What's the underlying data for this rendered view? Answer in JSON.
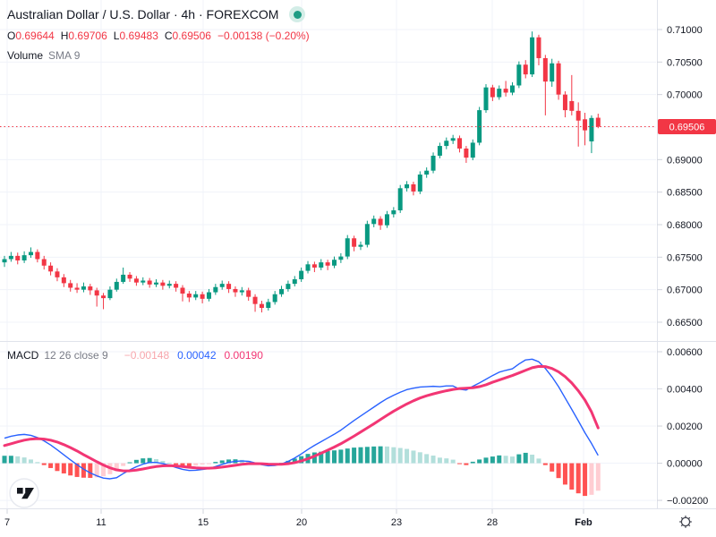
{
  "header": {
    "title": "Australian Dollar / U.S. Dollar · 4h · FOREXCOM",
    "market_status": "open",
    "ohlc": {
      "o_label": "O",
      "o_value": "0.69644",
      "h_label": "H",
      "h_value": "0.69706",
      "l_label": "L",
      "l_value": "0.69483",
      "c_label": "C",
      "c_value": "0.69506",
      "change": "−0.00138 (−0.20%)"
    }
  },
  "legend": {
    "volume": {
      "name": "Volume",
      "params": "SMA 9"
    },
    "macd": {
      "name": "MACD",
      "params": "12 26 close 9",
      "hist_value": "−0.00148",
      "macd_value": "0.00042",
      "signal_value": "0.00190"
    }
  },
  "price_axis": {
    "labels": [
      {
        "t": "0.71000",
        "v": 0.71
      },
      {
        "t": "0.70500",
        "v": 0.705
      },
      {
        "t": "0.70000",
        "v": 0.7
      },
      {
        "t": "0.69000",
        "v": 0.69
      },
      {
        "t": "0.68500",
        "v": 0.685
      },
      {
        "t": "0.68000",
        "v": 0.68
      },
      {
        "t": "0.67500",
        "v": 0.675
      },
      {
        "t": "0.67000",
        "v": 0.67
      },
      {
        "t": "0.66500",
        "v": 0.665
      }
    ],
    "last_price_label": {
      "t": "0.69506",
      "v": 0.69506
    }
  },
  "macd_axis": {
    "labels": [
      {
        "t": "0.00600",
        "v": 0.006
      },
      {
        "t": "0.00400",
        "v": 0.004
      },
      {
        "t": "0.00200",
        "v": 0.002
      },
      {
        "t": "0.00000",
        "v": 0
      },
      {
        "t": "−0.00200",
        "v": -0.002
      }
    ]
  },
  "time_axis": {
    "labels": [
      "7",
      "11",
      "15",
      "20",
      "23",
      "28",
      "Feb"
    ]
  },
  "colors": {
    "up": "#089981",
    "down": "#F23645",
    "accent_red": "#F23645",
    "macd_line": "#2962FF",
    "signal_line": "#F23674",
    "hist_up": "#26A69A",
    "hist_up_weak": "#B2DFDB",
    "hist_down": "#FF5252",
    "hist_down_weak": "#FFCDD2",
    "grid": "#F0F3FA",
    "border": "#E0E3EB",
    "axis_text": "#131722",
    "muted_text": "#787B86"
  },
  "chart_data": {
    "type": "candlestick",
    "title": "Australian Dollar / U.S. Dollar",
    "interval": "4h",
    "exchange": "FOREXCOM",
    "last_price": 0.69506,
    "price_ylim": [
      0.66211,
      0.71454
    ],
    "grid_price_values": [
      0.665,
      0.67,
      0.675,
      0.68,
      0.685,
      0.69,
      0.695,
      0.7,
      0.705,
      0.71
    ],
    "candles": [
      [
        0.6742,
        0.6752,
        0.6735,
        0.6747
      ],
      [
        0.6747,
        0.6758,
        0.6743,
        0.6752
      ],
      [
        0.6752,
        0.6757,
        0.6739,
        0.6745
      ],
      [
        0.6745,
        0.6759,
        0.6741,
        0.6753
      ],
      [
        0.6753,
        0.6765,
        0.6749,
        0.6758
      ],
      [
        0.6758,
        0.6762,
        0.6742,
        0.6747
      ],
      [
        0.6747,
        0.6752,
        0.6731,
        0.6737
      ],
      [
        0.6737,
        0.6742,
        0.6722,
        0.6728
      ],
      [
        0.6728,
        0.6733,
        0.6713,
        0.6719
      ],
      [
        0.6719,
        0.6724,
        0.6704,
        0.671
      ],
      [
        0.671,
        0.6715,
        0.6697,
        0.6703
      ],
      [
        0.6703,
        0.671,
        0.6695,
        0.67
      ],
      [
        0.67,
        0.6711,
        0.6696,
        0.6705
      ],
      [
        0.6705,
        0.6709,
        0.6692,
        0.6699
      ],
      [
        0.6699,
        0.6703,
        0.6674,
        0.6691
      ],
      [
        0.6691,
        0.6695,
        0.667,
        0.6687
      ],
      [
        0.6687,
        0.6705,
        0.6684,
        0.67
      ],
      [
        0.67,
        0.6717,
        0.6697,
        0.6712
      ],
      [
        0.6712,
        0.6734,
        0.6709,
        0.6723
      ],
      [
        0.6723,
        0.6727,
        0.6712,
        0.6717
      ],
      [
        0.6717,
        0.6721,
        0.6706,
        0.6711
      ],
      [
        0.6711,
        0.6719,
        0.6707,
        0.6714
      ],
      [
        0.6714,
        0.6718,
        0.6703,
        0.6708
      ],
      [
        0.6708,
        0.6716,
        0.6704,
        0.6711
      ],
      [
        0.6711,
        0.6715,
        0.67,
        0.6706
      ],
      [
        0.6706,
        0.6714,
        0.6702,
        0.6709
      ],
      [
        0.6709,
        0.6713,
        0.6697,
        0.6703
      ],
      [
        0.6703,
        0.6707,
        0.6682,
        0.6694
      ],
      [
        0.6694,
        0.6698,
        0.6681,
        0.6688
      ],
      [
        0.6688,
        0.6698,
        0.6684,
        0.6693
      ],
      [
        0.6693,
        0.6697,
        0.6679,
        0.6686
      ],
      [
        0.6686,
        0.6701,
        0.6682,
        0.6696
      ],
      [
        0.6696,
        0.6709,
        0.6692,
        0.6704
      ],
      [
        0.6704,
        0.6714,
        0.67,
        0.6709
      ],
      [
        0.6709,
        0.6713,
        0.6695,
        0.6701
      ],
      [
        0.6701,
        0.6705,
        0.6689,
        0.6696
      ],
      [
        0.6696,
        0.6704,
        0.6691,
        0.6699
      ],
      [
        0.6699,
        0.6703,
        0.6683,
        0.6689
      ],
      [
        0.6689,
        0.6693,
        0.6666,
        0.6678
      ],
      [
        0.6678,
        0.6683,
        0.6665,
        0.6672
      ],
      [
        0.6672,
        0.6686,
        0.6668,
        0.6681
      ],
      [
        0.6681,
        0.6698,
        0.6677,
        0.6693
      ],
      [
        0.6693,
        0.6706,
        0.6689,
        0.6701
      ],
      [
        0.6701,
        0.6714,
        0.6697,
        0.6709
      ],
      [
        0.6709,
        0.6721,
        0.6705,
        0.6716
      ],
      [
        0.6716,
        0.6734,
        0.6712,
        0.6729
      ],
      [
        0.6729,
        0.6744,
        0.6725,
        0.6739
      ],
      [
        0.6739,
        0.6743,
        0.6727,
        0.6734
      ],
      [
        0.6734,
        0.6747,
        0.673,
        0.6742
      ],
      [
        0.6742,
        0.6746,
        0.673,
        0.6737
      ],
      [
        0.6737,
        0.6751,
        0.6733,
        0.6746
      ],
      [
        0.6746,
        0.6756,
        0.6741,
        0.6751
      ],
      [
        0.6751,
        0.6784,
        0.6747,
        0.6779
      ],
      [
        0.6779,
        0.6783,
        0.6759,
        0.6766
      ],
      [
        0.6766,
        0.6774,
        0.6761,
        0.6769
      ],
      [
        0.6769,
        0.6806,
        0.6765,
        0.6801
      ],
      [
        0.6801,
        0.6814,
        0.6796,
        0.6809
      ],
      [
        0.6809,
        0.6813,
        0.6792,
        0.6799
      ],
      [
        0.6799,
        0.6821,
        0.6795,
        0.6816
      ],
      [
        0.6816,
        0.6827,
        0.6811,
        0.6822
      ],
      [
        0.6822,
        0.6861,
        0.6818,
        0.6856
      ],
      [
        0.6856,
        0.6867,
        0.6851,
        0.6862
      ],
      [
        0.6862,
        0.6866,
        0.6845,
        0.6851
      ],
      [
        0.6851,
        0.6882,
        0.6847,
        0.6877
      ],
      [
        0.6877,
        0.6888,
        0.6872,
        0.6883
      ],
      [
        0.6883,
        0.6911,
        0.6879,
        0.6906
      ],
      [
        0.6906,
        0.6926,
        0.6902,
        0.6921
      ],
      [
        0.6921,
        0.6934,
        0.6916,
        0.6929
      ],
      [
        0.6929,
        0.6938,
        0.6924,
        0.6933
      ],
      [
        0.6933,
        0.6937,
        0.6911,
        0.6917
      ],
      [
        0.6917,
        0.6921,
        0.6895,
        0.6903
      ],
      [
        0.6903,
        0.6931,
        0.6899,
        0.6926
      ],
      [
        0.6926,
        0.6981,
        0.6922,
        0.6976
      ],
      [
        0.6976,
        0.7016,
        0.6972,
        0.7011
      ],
      [
        0.7011,
        0.7015,
        0.699,
        0.6996
      ],
      [
        0.6996,
        0.7014,
        0.6992,
        0.7009
      ],
      [
        0.7009,
        0.7021,
        0.6997,
        0.7003
      ],
      [
        0.7003,
        0.7019,
        0.6999,
        0.7014
      ],
      [
        0.7014,
        0.7051,
        0.701,
        0.7046
      ],
      [
        0.7046,
        0.7053,
        0.7025,
        0.7031
      ],
      [
        0.7031,
        0.7097,
        0.7027,
        0.7088
      ],
      [
        0.7088,
        0.7092,
        0.7045,
        0.7056
      ],
      [
        0.7056,
        0.7061,
        0.6968,
        0.702
      ],
      [
        0.702,
        0.7055,
        0.7012,
        0.7048
      ],
      [
        0.7048,
        0.7052,
        0.6992,
        0.7
      ],
      [
        0.7,
        0.7005,
        0.6965,
        0.6976
      ],
      [
        0.699,
        0.703,
        0.6968,
        0.6975
      ],
      [
        0.6975,
        0.6988,
        0.692,
        0.696
      ],
      [
        0.6962,
        0.6972,
        0.6922,
        0.6945
      ],
      [
        0.6928,
        0.6968,
        0.691,
        0.6964
      ],
      [
        0.69644,
        0.69706,
        0.69483,
        0.69506
      ]
    ],
    "macd_indicator": {
      "params": {
        "fast": 12,
        "slow": 26,
        "source": "close",
        "signal_smoothing": 9
      },
      "unit": 1e-05,
      "ylim": [
        -0.00243,
        0.00653
      ],
      "grid_values": [
        -0.002,
        0,
        0.002,
        0.004,
        0.006
      ],
      "macd": [
        135,
        145,
        152,
        155,
        150,
        138,
        120,
        98,
        72,
        45,
        18,
        -8,
        -32,
        -52,
        -68,
        -80,
        -84,
        -78,
        -56,
        -36,
        -19,
        -5,
        4,
        4,
        -2,
        -11,
        -23,
        -33,
        -39,
        -38,
        -34,
        -29,
        -18,
        -6,
        4,
        10,
        12,
        10,
        2,
        -8,
        -14,
        -12,
        -4,
        10,
        28,
        50,
        74,
        96,
        116,
        136,
        156,
        178,
        204,
        230,
        254,
        278,
        302,
        326,
        348,
        366,
        382,
        396,
        404,
        410,
        412,
        414,
        412,
        416,
        416,
        398,
        394,
        414,
        432,
        452,
        472,
        490,
        500,
        508,
        534,
        556,
        560,
        546,
        510,
        465,
        412,
        351,
        290,
        228,
        164,
        106,
        42
      ],
      "signal": [
        95,
        105,
        115,
        124,
        130,
        132,
        130,
        124,
        114,
        100,
        84,
        66,
        46,
        27,
        8,
        -10,
        -25,
        -36,
        -41,
        -41,
        -37,
        -31,
        -24,
        -18,
        -14,
        -13,
        -15,
        -18,
        -22,
        -25,
        -27,
        -27,
        -25,
        -21,
        -16,
        -11,
        -6,
        -3,
        -2,
        -3,
        -5,
        -6,
        -6,
        -3,
        3,
        12,
        24,
        38,
        54,
        70,
        87,
        105,
        125,
        146,
        168,
        190,
        212,
        235,
        258,
        280,
        300,
        319,
        336,
        351,
        363,
        373,
        382,
        390,
        397,
        402,
        404,
        406,
        412,
        422,
        436,
        448,
        460,
        472,
        486,
        500,
        514,
        521,
        520,
        510,
        492,
        466,
        432,
        390,
        340,
        276,
        190
      ],
      "histogram": [
        40,
        40,
        37,
        31,
        20,
        6,
        -10,
        -26,
        -42,
        -55,
        -66,
        -74,
        -78,
        -79,
        -76,
        -70,
        -59,
        -42,
        -15,
        5,
        18,
        26,
        28,
        22,
        12,
        2,
        -8,
        -15,
        -17,
        -13,
        -7,
        -2,
        7,
        15,
        20,
        21,
        18,
        13,
        4,
        -5,
        -9,
        -6,
        2,
        13,
        25,
        38,
        50,
        58,
        62,
        66,
        69,
        73,
        79,
        84,
        86,
        88,
        90,
        91,
        90,
        86,
        82,
        77,
        68,
        59,
        49,
        41,
        30,
        26,
        19,
        -4,
        -10,
        8,
        20,
        30,
        36,
        42,
        40,
        36,
        48,
        56,
        46,
        25,
        -10,
        -45,
        -80,
        -115,
        -142,
        -162,
        -176,
        -170,
        -148
      ]
    }
  }
}
